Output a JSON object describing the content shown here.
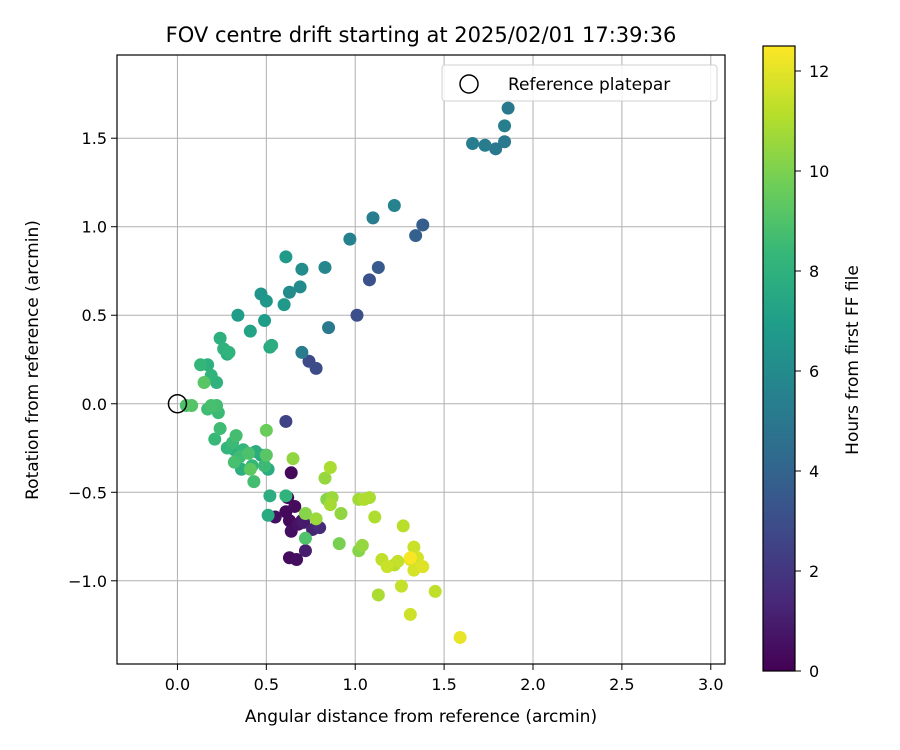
{
  "chart_data": {
    "type": "scatter",
    "title": "FOV centre drift starting at 2025/02/01 17:39:36",
    "xlabel": "Angular distance from reference (arcmin)",
    "ylabel": "Rotation from reference (arcmin)",
    "xlim": [
      -0.34,
      3.08
    ],
    "ylim": [
      -1.47,
      1.97
    ],
    "xticks": [
      0.0,
      0.5,
      1.0,
      1.5,
      2.0,
      2.5,
      3.0
    ],
    "xtick_labels": [
      "0.0",
      "0.5",
      "1.0",
      "1.5",
      "2.0",
      "2.5",
      "3.0"
    ],
    "yticks": [
      -1.0,
      -0.5,
      0.0,
      0.5,
      1.0,
      1.5
    ],
    "ytick_labels": [
      "−1.0",
      "−0.5",
      "0.0",
      "0.5",
      "1.0",
      "1.5"
    ],
    "grid": true,
    "legend": {
      "position": "top-right",
      "entries": [
        {
          "label": "Reference platepar",
          "marker": "open-circle",
          "color": "#000000"
        }
      ]
    },
    "reference_point": {
      "x": 0.0,
      "y": 0.0
    },
    "colorbar": {
      "label": "Hours from first FF file",
      "colormap": "viridis",
      "range": [
        0,
        12.5
      ],
      "ticks": [
        0,
        2,
        4,
        6,
        8,
        10,
        12
      ],
      "tick_labels": [
        "0",
        "2",
        "4",
        "6",
        "8",
        "10",
        "12"
      ]
    },
    "points": [
      {
        "x": 0.64,
        "y": -0.39,
        "t": 0.3
      },
      {
        "x": 0.62,
        "y": -0.53,
        "t": 0.2
      },
      {
        "x": 0.66,
        "y": -0.58,
        "t": 0.4
      },
      {
        "x": 0.61,
        "y": -0.61,
        "t": 0.3
      },
      {
        "x": 0.55,
        "y": -0.64,
        "t": 0.5
      },
      {
        "x": 0.63,
        "y": -0.66,
        "t": 0.3
      },
      {
        "x": 0.68,
        "y": -0.68,
        "t": 0.6
      },
      {
        "x": 0.64,
        "y": -0.72,
        "t": 0.5
      },
      {
        "x": 0.7,
        "y": -0.66,
        "t": 0.7
      },
      {
        "x": 0.63,
        "y": -0.87,
        "t": 0.4
      },
      {
        "x": 0.67,
        "y": -0.88,
        "t": 0.5
      },
      {
        "x": 0.72,
        "y": -0.83,
        "t": 1.0
      },
      {
        "x": 0.76,
        "y": -0.71,
        "t": 1.2
      },
      {
        "x": 0.71,
        "y": -0.67,
        "t": 0.9
      },
      {
        "x": 0.8,
        "y": -0.7,
        "t": 1.5
      },
      {
        "x": 0.61,
        "y": -0.1,
        "t": 2.5
      },
      {
        "x": 0.74,
        "y": 0.24,
        "t": 2.8
      },
      {
        "x": 0.78,
        "y": 0.2,
        "t": 2.9
      },
      {
        "x": 1.01,
        "y": 0.5,
        "t": 3.1
      },
      {
        "x": 1.08,
        "y": 0.7,
        "t": 3.2
      },
      {
        "x": 1.13,
        "y": 0.77,
        "t": 3.6
      },
      {
        "x": 1.34,
        "y": 0.95,
        "t": 3.8
      },
      {
        "x": 1.38,
        "y": 1.01,
        "t": 3.7
      },
      {
        "x": 0.7,
        "y": 0.29,
        "t": 5.2
      },
      {
        "x": 0.85,
        "y": 0.43,
        "t": 5.1
      },
      {
        "x": 0.97,
        "y": 0.93,
        "t": 5.5
      },
      {
        "x": 1.1,
        "y": 1.05,
        "t": 5.3
      },
      {
        "x": 1.22,
        "y": 1.12,
        "t": 5.6
      },
      {
        "x": 0.83,
        "y": 0.77,
        "t": 5.8
      },
      {
        "x": 0.69,
        "y": 0.66,
        "t": 6.0
      },
      {
        "x": 0.7,
        "y": 0.76,
        "t": 6.1
      },
      {
        "x": 0.63,
        "y": 0.63,
        "t": 6.0
      },
      {
        "x": 1.66,
        "y": 1.47,
        "t": 5.3
      },
      {
        "x": 1.73,
        "y": 1.46,
        "t": 5.2
      },
      {
        "x": 1.79,
        "y": 1.44,
        "t": 5.0
      },
      {
        "x": 1.84,
        "y": 1.48,
        "t": 5.1
      },
      {
        "x": 1.84,
        "y": 1.57,
        "t": 5.4
      },
      {
        "x": 1.86,
        "y": 1.67,
        "t": 5.0
      },
      {
        "x": 0.61,
        "y": 0.83,
        "t": 6.8
      },
      {
        "x": 0.47,
        "y": 0.62,
        "t": 6.5
      },
      {
        "x": 0.49,
        "y": 0.47,
        "t": 6.9
      },
      {
        "x": 0.5,
        "y": 0.58,
        "t": 6.6
      },
      {
        "x": 0.6,
        "y": 0.56,
        "t": 6.7
      },
      {
        "x": 0.34,
        "y": 0.5,
        "t": 6.9
      },
      {
        "x": 0.41,
        "y": 0.41,
        "t": 7.2
      },
      {
        "x": 0.52,
        "y": 0.32,
        "t": 7.5
      },
      {
        "x": 0.53,
        "y": 0.33,
        "t": 7.8
      },
      {
        "x": 0.24,
        "y": 0.37,
        "t": 7.9
      },
      {
        "x": 0.26,
        "y": 0.31,
        "t": 8.0
      },
      {
        "x": 0.28,
        "y": 0.28,
        "t": 7.8
      },
      {
        "x": 0.29,
        "y": 0.29,
        "t": 8.1
      },
      {
        "x": 0.13,
        "y": 0.22,
        "t": 8.3
      },
      {
        "x": 0.17,
        "y": 0.22,
        "t": 7.9
      },
      {
        "x": 0.19,
        "y": 0.16,
        "t": 8.1
      },
      {
        "x": 0.22,
        "y": 0.12,
        "t": 8.0
      },
      {
        "x": 0.15,
        "y": 0.12,
        "t": 9.2
      },
      {
        "x": 0.05,
        "y": -0.01,
        "t": 8.9
      },
      {
        "x": 0.08,
        "y": -0.01,
        "t": 9.1
      },
      {
        "x": 0.17,
        "y": -0.03,
        "t": 8.6
      },
      {
        "x": 0.22,
        "y": -0.01,
        "t": 8.7
      },
      {
        "x": 0.23,
        "y": -0.05,
        "t": 8.5
      },
      {
        "x": 0.19,
        "y": -0.01,
        "t": 8.8
      },
      {
        "x": 0.24,
        "y": -0.14,
        "t": 8.6
      },
      {
        "x": 0.21,
        "y": -0.2,
        "t": 8.4
      },
      {
        "x": 0.28,
        "y": -0.25,
        "t": 8.2
      },
      {
        "x": 0.32,
        "y": -0.26,
        "t": 8.0
      },
      {
        "x": 0.33,
        "y": -0.18,
        "t": 8.7
      },
      {
        "x": 0.31,
        "y": -0.22,
        "t": 8.5
      },
      {
        "x": 0.35,
        "y": -0.3,
        "t": 8.6
      },
      {
        "x": 0.32,
        "y": -0.33,
        "t": 8.8
      },
      {
        "x": 0.37,
        "y": -0.26,
        "t": 8.2
      },
      {
        "x": 0.4,
        "y": -0.28,
        "t": 8.9
      },
      {
        "x": 0.44,
        "y": -0.27,
        "t": 7.8
      },
      {
        "x": 0.47,
        "y": -0.29,
        "t": 7.6
      },
      {
        "x": 0.5,
        "y": -0.29,
        "t": 9.2
      },
      {
        "x": 0.5,
        "y": -0.15,
        "t": 9.6
      },
      {
        "x": 0.36,
        "y": -0.37,
        "t": 7.9
      },
      {
        "x": 0.42,
        "y": -0.35,
        "t": 8.3
      },
      {
        "x": 0.49,
        "y": -0.35,
        "t": 8.5
      },
      {
        "x": 0.51,
        "y": -0.37,
        "t": 7.7
      },
      {
        "x": 0.43,
        "y": -0.44,
        "t": 8.7
      },
      {
        "x": 0.41,
        "y": -0.37,
        "t": 9.3
      },
      {
        "x": 0.52,
        "y": -0.52,
        "t": 7.8
      },
      {
        "x": 0.61,
        "y": -0.52,
        "t": 8.1
      },
      {
        "x": 0.51,
        "y": -0.63,
        "t": 7.6
      },
      {
        "x": 0.72,
        "y": -0.76,
        "t": 9.0
      },
      {
        "x": 0.65,
        "y": -0.31,
        "t": 10.4
      },
      {
        "x": 0.83,
        "y": -0.42,
        "t": 10.5
      },
      {
        "x": 0.86,
        "y": -0.36,
        "t": 10.9
      },
      {
        "x": 0.84,
        "y": -0.54,
        "t": 10.2
      },
      {
        "x": 0.87,
        "y": -0.53,
        "t": 10.6
      },
      {
        "x": 0.86,
        "y": -0.57,
        "t": 10.8
      },
      {
        "x": 0.92,
        "y": -0.62,
        "t": 10.4
      },
      {
        "x": 0.72,
        "y": -0.62,
        "t": 10.2
      },
      {
        "x": 0.78,
        "y": -0.65,
        "t": 10.6
      },
      {
        "x": 0.91,
        "y": -0.79,
        "t": 9.9
      },
      {
        "x": 1.02,
        "y": -0.54,
        "t": 10.7
      },
      {
        "x": 1.05,
        "y": -0.54,
        "t": 11.0
      },
      {
        "x": 1.08,
        "y": -0.53,
        "t": 10.9
      },
      {
        "x": 1.11,
        "y": -0.64,
        "t": 11.0
      },
      {
        "x": 1.02,
        "y": -0.83,
        "t": 10.2
      },
      {
        "x": 1.04,
        "y": -0.8,
        "t": 10.5
      },
      {
        "x": 1.15,
        "y": -0.88,
        "t": 11.3
      },
      {
        "x": 1.18,
        "y": -0.92,
        "t": 11.5
      },
      {
        "x": 1.22,
        "y": -0.91,
        "t": 11.1
      },
      {
        "x": 1.24,
        "y": -0.89,
        "t": 11.4
      },
      {
        "x": 1.27,
        "y": -0.69,
        "t": 11.2
      },
      {
        "x": 1.31,
        "y": -0.88,
        "t": 11.8
      },
      {
        "x": 1.33,
        "y": -0.81,
        "t": 11.5
      },
      {
        "x": 1.35,
        "y": -0.87,
        "t": 11.7
      },
      {
        "x": 1.31,
        "y": -0.87,
        "t": 12.4
      },
      {
        "x": 1.33,
        "y": -0.94,
        "t": 11.7
      },
      {
        "x": 1.38,
        "y": -0.92,
        "t": 11.9
      },
      {
        "x": 1.26,
        "y": -1.03,
        "t": 11.4
      },
      {
        "x": 1.13,
        "y": -1.08,
        "t": 10.9
      },
      {
        "x": 1.45,
        "y": -1.06,
        "t": 11.3
      },
      {
        "x": 1.31,
        "y": -1.19,
        "t": 11.6
      },
      {
        "x": 1.59,
        "y": -1.32,
        "t": 12.1
      }
    ]
  }
}
